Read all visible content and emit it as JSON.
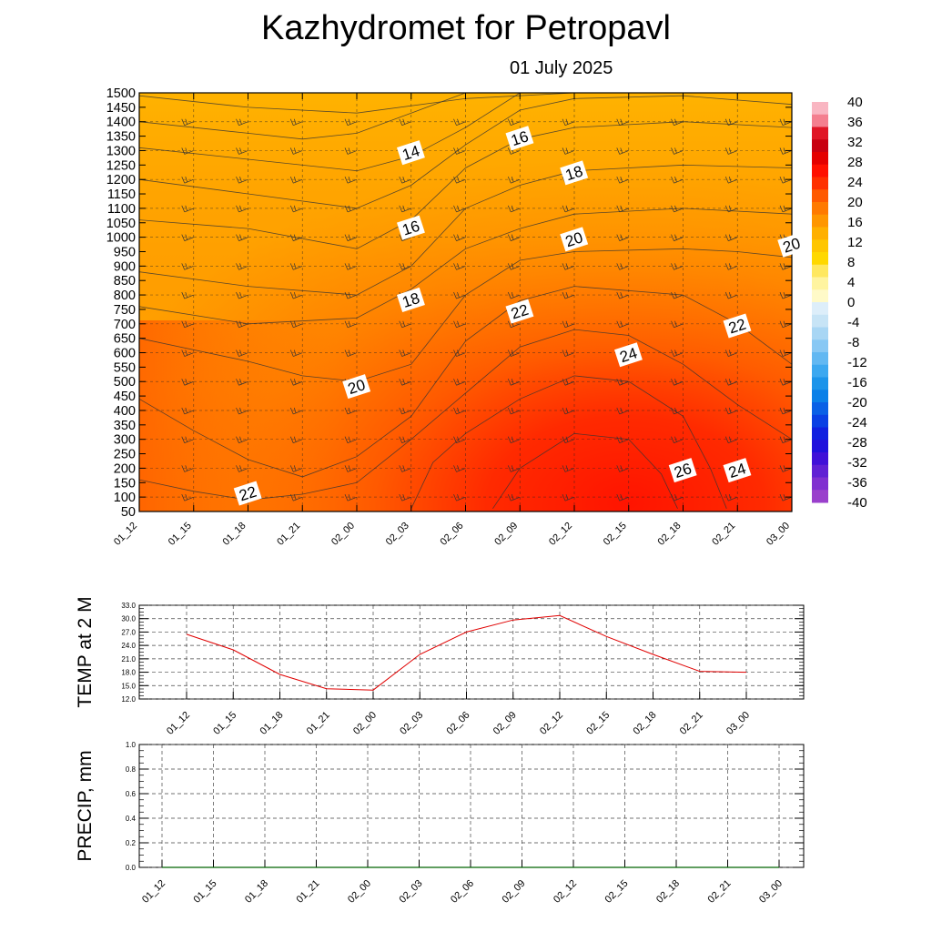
{
  "header": {
    "title": "Kazhydromet  for Petropavl",
    "date": "01 July 2025"
  },
  "time_labels": [
    "01_12",
    "01_15",
    "01_18",
    "01_21",
    "02_00",
    "02_03",
    "02_06",
    "02_09",
    "02_12",
    "02_15",
    "02_18",
    "02_21",
    "03_00"
  ],
  "colors": {
    "temp_line": "#e00000",
    "precip_line": "#006400",
    "contour": "#333333"
  },
  "chart_data": [
    {
      "type": "heatmap",
      "name": "cross-section",
      "title": "Kazhydromet  for Petropavl",
      "subtitle": "01 July 2025",
      "x": [
        "01_12",
        "01_15",
        "01_18",
        "01_21",
        "02_00",
        "02_03",
        "02_06",
        "02_09",
        "02_12",
        "02_15",
        "02_18",
        "02_21",
        "03_00"
      ],
      "y_ticks": [
        "50",
        "100",
        "150",
        "200",
        "250",
        "300",
        "350",
        "400",
        "450",
        "500",
        "550",
        "600",
        "650",
        "700",
        "750",
        "800",
        "850",
        "900",
        "950",
        "1000",
        "1050",
        "1100",
        "1150",
        "1200",
        "1250",
        "1300",
        "1350",
        "1400",
        "1450",
        "1500"
      ],
      "ylim": [
        50,
        1500
      ],
      "colorbar": {
        "ticks": [
          "40",
          "36",
          "32",
          "28",
          "24",
          "20",
          "16",
          "12",
          "8",
          "4",
          "0",
          "-4",
          "-8",
          "-12",
          "-16",
          "-20",
          "-24",
          "-28",
          "-32",
          "-36",
          "-40"
        ],
        "range": [
          -40,
          40
        ]
      },
      "contour_labels": [
        {
          "text": "14",
          "time": "02_03",
          "level": 1290
        },
        {
          "text": "16",
          "time": "02_09",
          "level": 1340
        },
        {
          "text": "18",
          "time": "02_12",
          "level": 1220
        },
        {
          "text": "16",
          "time": "02_03",
          "level": 1030
        },
        {
          "text": "20",
          "time": "02_12",
          "level": 990
        },
        {
          "text": "20",
          "time": "03_00",
          "level": 970
        },
        {
          "text": "18",
          "time": "02_03",
          "level": 780
        },
        {
          "text": "22",
          "time": "02_09",
          "level": 740
        },
        {
          "text": "22",
          "time": "02_21",
          "level": 690
        },
        {
          "text": "24",
          "time": "02_15",
          "level": 590
        },
        {
          "text": "20",
          "time": "02_00",
          "level": 480
        },
        {
          "text": "26",
          "time": "02_18",
          "level": 190
        },
        {
          "text": "24",
          "time": "02_21",
          "level": 190
        },
        {
          "text": "22",
          "time": "01_18",
          "level": 110
        }
      ]
    },
    {
      "type": "line",
      "name": "temp-2m",
      "ylabel": "TEMP at 2 M",
      "x": [
        "01_12",
        "01_15",
        "01_18",
        "01_21",
        "02_00",
        "02_03",
        "02_06",
        "02_09",
        "02_12",
        "02_15",
        "02_18",
        "02_21",
        "03_00"
      ],
      "values": [
        26.5,
        23.0,
        17.5,
        14.3,
        14.0,
        22.0,
        27.0,
        29.7,
        30.7,
        26.0,
        22.0,
        18.2,
        18.0
      ],
      "yticks": [
        "33.0",
        "30.0",
        "27.0",
        "24.0",
        "21.0",
        "18.0",
        "15.0",
        "12.0"
      ],
      "ylim": [
        12,
        33
      ],
      "grid": true
    },
    {
      "type": "line",
      "name": "precip",
      "ylabel": "PRECIP, mm",
      "x": [
        "01_12",
        "01_15",
        "01_18",
        "01_21",
        "02_00",
        "02_03",
        "02_06",
        "02_09",
        "02_12",
        "02_15",
        "02_18",
        "02_21",
        "03_00"
      ],
      "values": [
        0,
        0,
        0,
        0,
        0,
        0,
        0,
        0,
        0,
        0,
        0,
        0,
        0
      ],
      "yticks": [
        "1.0",
        "0.8",
        "0.6",
        "0.4",
        "0.2",
        "0.0"
      ],
      "ylim": [
        0,
        1
      ],
      "grid": true
    }
  ]
}
